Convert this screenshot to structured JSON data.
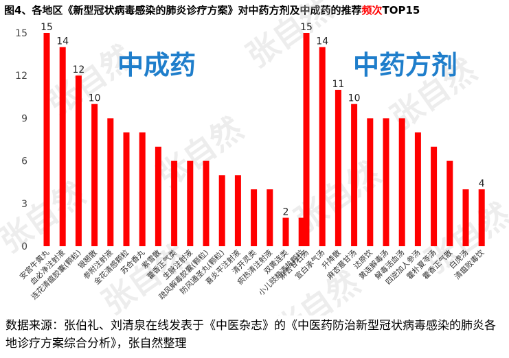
{
  "title": {
    "main": "图4、各地区《新型冠状病毒感染的肺炎诊疗方案》对中药方剂及中成药的推荐",
    "highlight": "频次",
    "suffix": "TOP15"
  },
  "source_note": "数据来源：张伯礼、刘清泉在线发表于《中医杂志》的《中医药防治新型冠状病毒感染的肺炎各地诊疗方案综合分析》，张自然整理",
  "watermark": "张自然",
  "colors": {
    "bar": "#ff0000",
    "panel_label": "#1f7ecb",
    "title_highlight": "#ff0000"
  },
  "chart_data": [
    {
      "type": "bar",
      "title": "中成药",
      "ylim": [
        0,
        15
      ],
      "yticks": [
        0,
        3,
        6,
        9,
        12,
        15
      ],
      "grid": false,
      "categories": [
        "安宫牛黄丸",
        "血必净注射液",
        "连花清瘟胶囊(颗粒)",
        "银翘散",
        "参附注射液",
        "金花清感颗粒",
        "苏合香丸",
        "紫雪散",
        "藿香正气类",
        "生脉注射液",
        "疏风解毒胶囊(颗粒)",
        "防风通圣丸(颗粒)",
        "喜炎平注射液",
        "清开灵类",
        "痰热清注射液",
        "双黄连类",
        "小儿豉翘清热颗粒"
      ],
      "values": [
        15,
        14,
        12,
        10,
        9,
        8,
        8,
        7,
        6,
        6,
        6,
        5,
        5,
        4,
        4,
        2,
        2
      ],
      "data_labels": [
        "15",
        "14",
        "12",
        "10",
        "",
        "",
        "",
        "",
        "",
        "",
        "",
        "",
        "",
        "",
        "",
        "2",
        ""
      ]
    },
    {
      "type": "bar",
      "title": "中药方剂",
      "ylim": [
        0,
        15
      ],
      "grid": false,
      "categories": [
        "麻杏甘石汤",
        "宣白承气汤",
        "升降散",
        "麻杏薏甘汤",
        "达原饮",
        "黄连解毒汤",
        "解毒活血汤",
        "四逆加人参汤",
        "藿朴夏苓汤",
        "藿香正气散",
        "白虎汤",
        "清瘟败毒饮"
      ],
      "values": [
        15,
        14,
        11,
        10,
        9,
        9,
        9,
        8,
        7,
        6,
        4,
        4
      ],
      "data_labels": [
        "15",
        "14",
        "11",
        "10",
        "",
        "",
        "",
        "",
        "",
        "",
        "",
        "4"
      ]
    }
  ]
}
